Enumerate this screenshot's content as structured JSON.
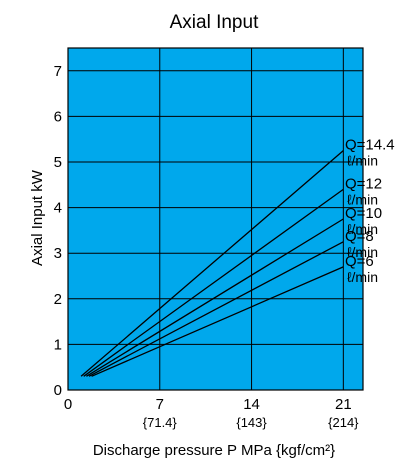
{
  "chart_data": {
    "type": "line",
    "title": "Axial Input",
    "xlabel": "Discharge pressure P MPa {kgf/cm²}",
    "ylabel": "Axial Input kW",
    "xlim": [
      0,
      22.5
    ],
    "ylim": [
      0,
      7.5
    ],
    "x_ticks": [
      0,
      7,
      14,
      21
    ],
    "x_ticks_alt": [
      "",
      "{71.4}",
      "{143}",
      "{214}"
    ],
    "y_ticks": [
      0,
      1,
      2,
      3,
      4,
      5,
      6,
      7
    ],
    "x_grid": [
      7,
      14,
      21
    ],
    "y_grid": [
      1,
      2,
      3,
      4,
      5,
      6,
      7
    ],
    "grid": true,
    "legend": "right",
    "series": [
      {
        "name": "Q=14.4",
        "unit": "ℓ/min",
        "x": [
          1.0,
          21
        ],
        "y": [
          0.3,
          5.25
        ]
      },
      {
        "name": "Q=12",
        "unit": "ℓ/min",
        "x": [
          1.2,
          21
        ],
        "y": [
          0.3,
          4.4
        ]
      },
      {
        "name": "Q=10",
        "unit": "ℓ/min",
        "x": [
          1.4,
          21
        ],
        "y": [
          0.3,
          3.75
        ]
      },
      {
        "name": "Q=8",
        "unit": "ℓ/min",
        "x": [
          1.6,
          21
        ],
        "y": [
          0.3,
          3.25
        ]
      },
      {
        "name": "Q=6",
        "unit": "ℓ/min",
        "x": [
          1.8,
          21
        ],
        "y": [
          0.3,
          2.7
        ]
      }
    ],
    "colors": {
      "background": "#00a8ec",
      "grid": "#000000",
      "line": "#000000"
    }
  }
}
